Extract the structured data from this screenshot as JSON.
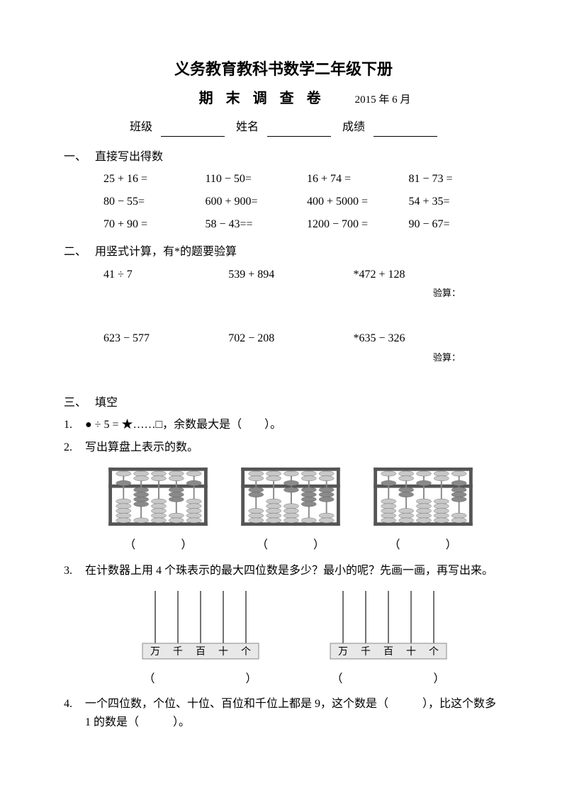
{
  "header": {
    "title_main": "义务教育教科书数学二年级下册",
    "title_sub": "期末调查卷",
    "date": "2015 年 6 月",
    "class_label": "班级",
    "name_label": "姓名",
    "score_label": "成绩"
  },
  "sections": {
    "s1": {
      "num": "一、",
      "title": "直接写出得数"
    },
    "s2": {
      "num": "二、",
      "title": "用竖式计算，有*的题要验算"
    },
    "s3": {
      "num": "三、",
      "title": "填空"
    }
  },
  "problems1": [
    "25 + 16 =",
    "110 − 50=",
    "16 + 74 =",
    "81 − 73 =",
    "80 − 55=",
    "600 + 900=",
    "400 + 5000 =",
    "54 + 35=",
    "70 + 90 =",
    "58 − 43==",
    "1200 − 700 =",
    "90 − 67="
  ],
  "problems2_row1": [
    "41 ÷ 7",
    "539 + 894",
    "*472 + 128"
  ],
  "problems2_row2": [
    "623 − 577",
    "702 − 208",
    "*635 − 326"
  ],
  "verify_label": "验算：",
  "q3": {
    "q1_num": "1.",
    "q1_text": "● ÷ 5 = ★……□，余数最大是（　　）。",
    "q2_num": "2.",
    "q2_text": "写出算盘上表示的数。",
    "q3_num": "3.",
    "q3_text": "在计数器上用 4 个珠表示的最大四位数是多少？最小的呢？先画一画，再写出来。",
    "q4_num": "4.",
    "q4_text": "一个四位数，个位、十位、百位和千位上都是 9，这个数是（　　　），比这个数多 1 的数是（　　　）。",
    "paren_open": "（",
    "paren_close": "）",
    "counter_labels": [
      "万",
      "千",
      "百",
      "十",
      "个"
    ]
  },
  "abacus": {
    "frame_color": "#555555",
    "bead_light": "#c8c8c8",
    "bead_dark": "#8a8a8a",
    "bg": "#ffffff",
    "abacus1": {
      "upper": [
        1,
        0,
        0,
        0,
        1
      ],
      "lower": [
        0,
        4,
        0,
        3,
        0
      ]
    },
    "abacus2": {
      "upper": [
        0,
        0,
        1,
        0,
        0
      ],
      "lower": [
        2,
        0,
        1,
        4,
        3
      ]
    },
    "abacus3": {
      "upper": [
        1,
        0,
        1,
        0,
        1
      ],
      "lower": [
        0,
        2,
        0,
        0,
        3
      ]
    }
  },
  "counter": {
    "rod_color": "#444444",
    "base_fill": "#e8e8e8",
    "base_stroke": "#888888",
    "text_color": "#000000"
  }
}
